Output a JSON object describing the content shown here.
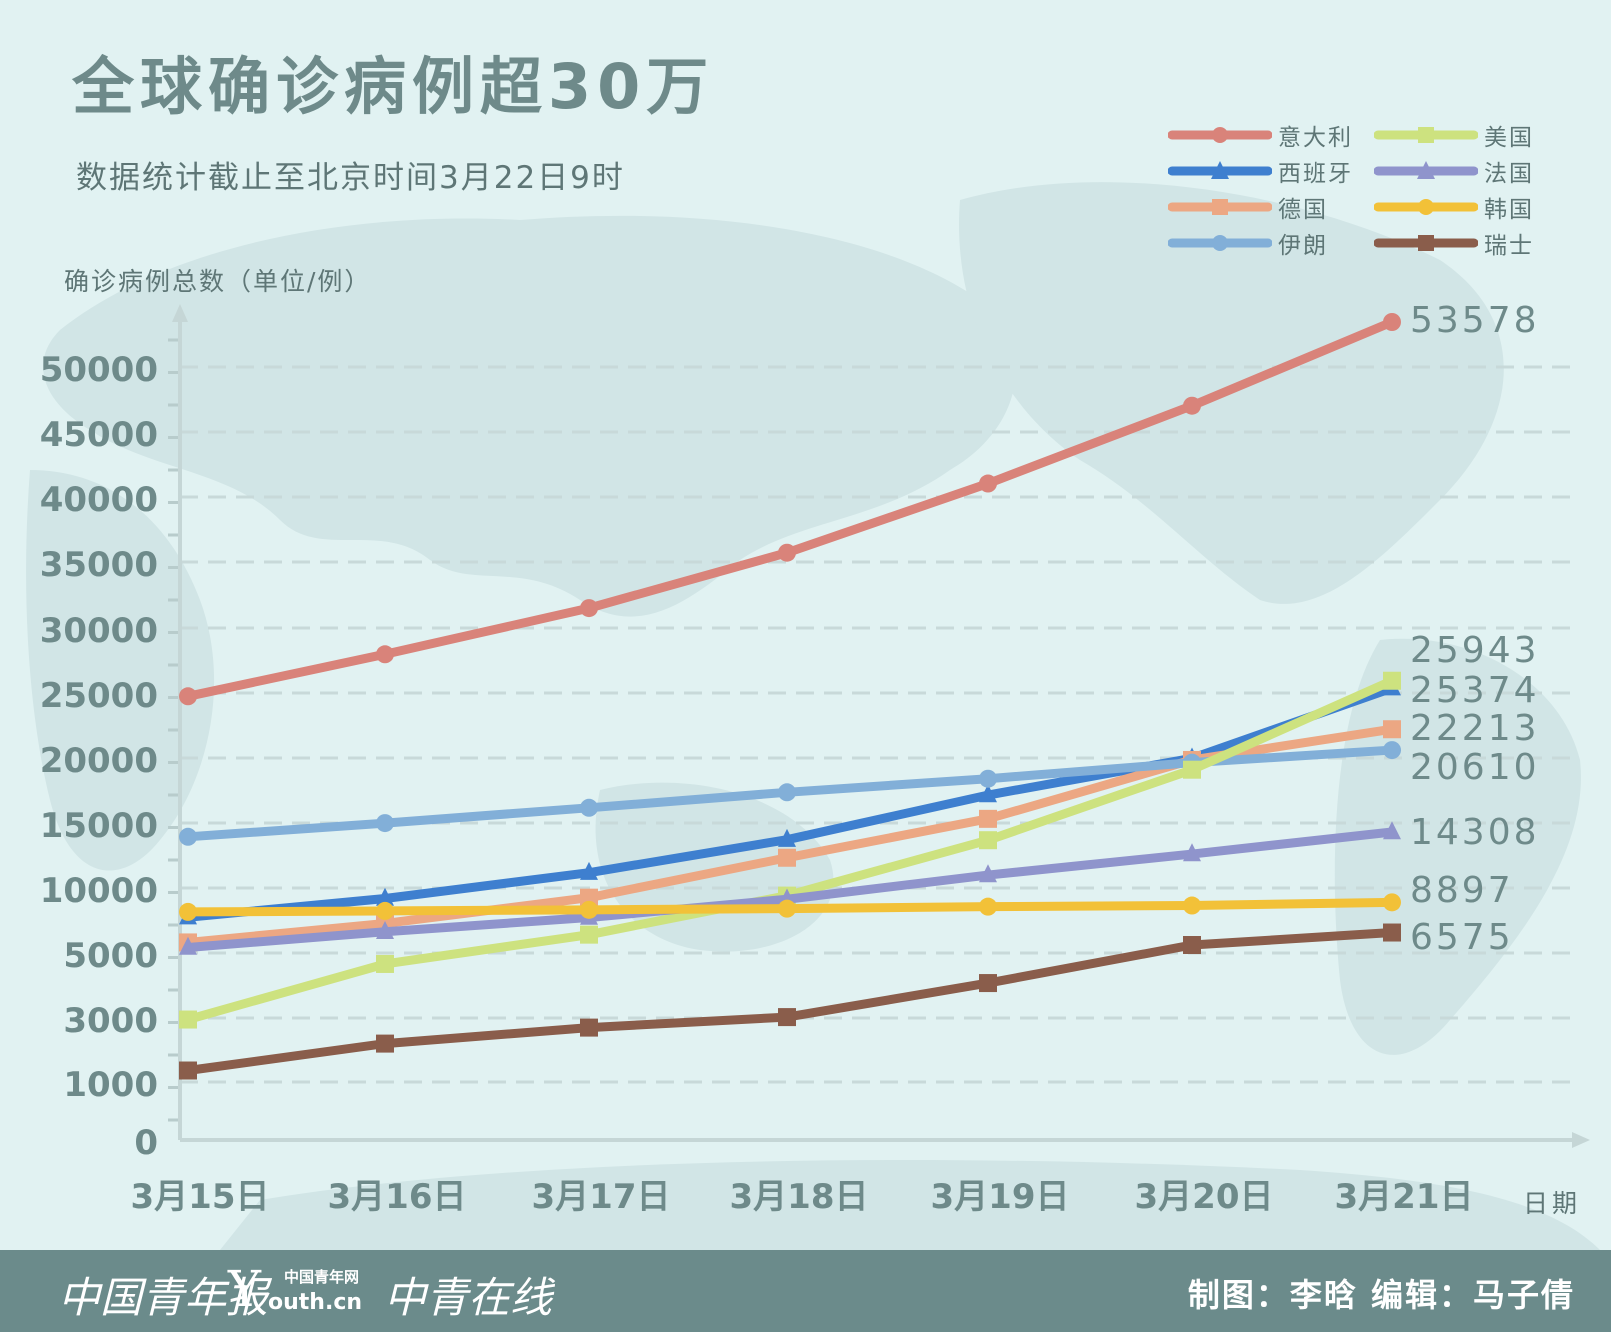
{
  "title": "全球确诊病例超30万",
  "subtitle": "数据统计截止至北京时间3月22日9时",
  "footer": {
    "logo_cyd": "中国青年报",
    "logo_youth_small": "中国青年网",
    "logo_youth_site": "outh.cn",
    "logo_youth_mark": "Y",
    "logo_zqzx": "中青在线",
    "credits": "制图：李晗   编辑：马子倩"
  },
  "chart_data": {
    "type": "line",
    "title": "全球确诊病例超30万",
    "subtitle": "数据统计截止至北京时间3月22日9时",
    "ylabel": "确诊病例总数（单位/例）",
    "xlabel": "日期",
    "categories": [
      "3月15日",
      "3月16日",
      "3月17日",
      "3月18日",
      "3月19日",
      "3月20日",
      "3月21日"
    ],
    "yticks": [
      0,
      1000,
      3000,
      5000,
      10000,
      15000,
      20000,
      25000,
      30000,
      35000,
      40000,
      45000,
      50000
    ],
    "ylim": [
      0,
      53578
    ],
    "grid": true,
    "legend_position": "top-right",
    "series": [
      {
        "name": "意大利",
        "color": "#d9837a",
        "marker": "circle",
        "values": [
          24747,
          27980,
          31506,
          35713,
          41035,
          47021,
          53578
        ],
        "end_label": "53578"
      },
      {
        "name": "西班牙",
        "color": "#3e7fcf",
        "marker": "triangle",
        "values": [
          7753,
          9191,
          11178,
          13716,
          17147,
          19980,
          25374
        ],
        "end_label": "25374"
      },
      {
        "name": "德国",
        "color": "#eca783",
        "marker": "square",
        "values": [
          5813,
          7272,
          9257,
          12327,
          15320,
          19848,
          22213
        ],
        "end_label": "22213"
      },
      {
        "name": "伊朗",
        "color": "#82afd8",
        "marker": "circle",
        "values": [
          13938,
          14991,
          16169,
          17361,
          18407,
          19644,
          20610
        ],
        "end_label": "20610"
      },
      {
        "name": "美国",
        "color": "#cde27f",
        "marker": "square",
        "values": [
          2952,
          4663,
          6411,
          9415,
          13677,
          19100,
          25943
        ],
        "end_label": "25943"
      },
      {
        "name": "法国",
        "color": "#8f94cc",
        "marker": "triangle",
        "values": [
          5423,
          6633,
          7730,
          9134,
          10995,
          12612,
          14308
        ],
        "end_label": "14308"
      },
      {
        "name": "韩国",
        "color": "#f2c138",
        "marker": "circle",
        "values": [
          8162,
          8236,
          8320,
          8413,
          8565,
          8652,
          8897
        ],
        "end_label": "8897"
      },
      {
        "name": "瑞士",
        "color": "#8a5d4b",
        "marker": "square",
        "values": [
          1359,
          2200,
          2700,
          3028,
          4075,
          5615,
          6575
        ],
        "end_label": "6575"
      }
    ]
  }
}
